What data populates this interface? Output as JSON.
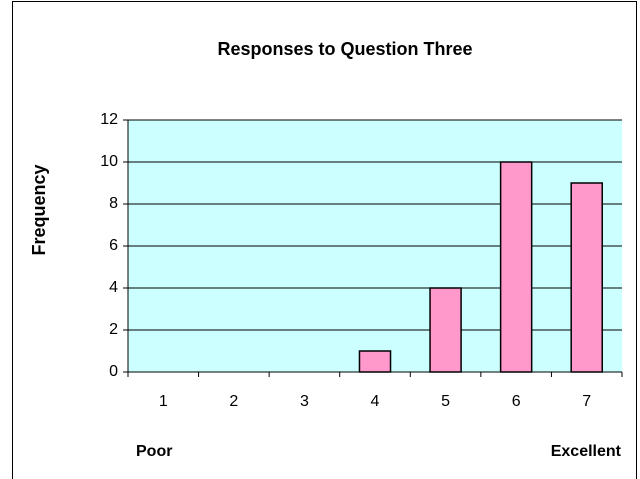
{
  "chart_data": {
    "type": "bar",
    "title": "Responses to Question Three",
    "y_label": "Frequency",
    "categories": [
      "1",
      "2",
      "3",
      "4",
      "5",
      "6",
      "7"
    ],
    "values": [
      0,
      0,
      0,
      1,
      4,
      10,
      9
    ],
    "color": "#ff99cc",
    "ylim": [
      0,
      12
    ],
    "yticks": [
      0,
      2,
      4,
      6,
      8,
      10,
      12
    ],
    "grid": true,
    "annotations": [
      "Poor",
      "Excellent"
    ]
  }
}
